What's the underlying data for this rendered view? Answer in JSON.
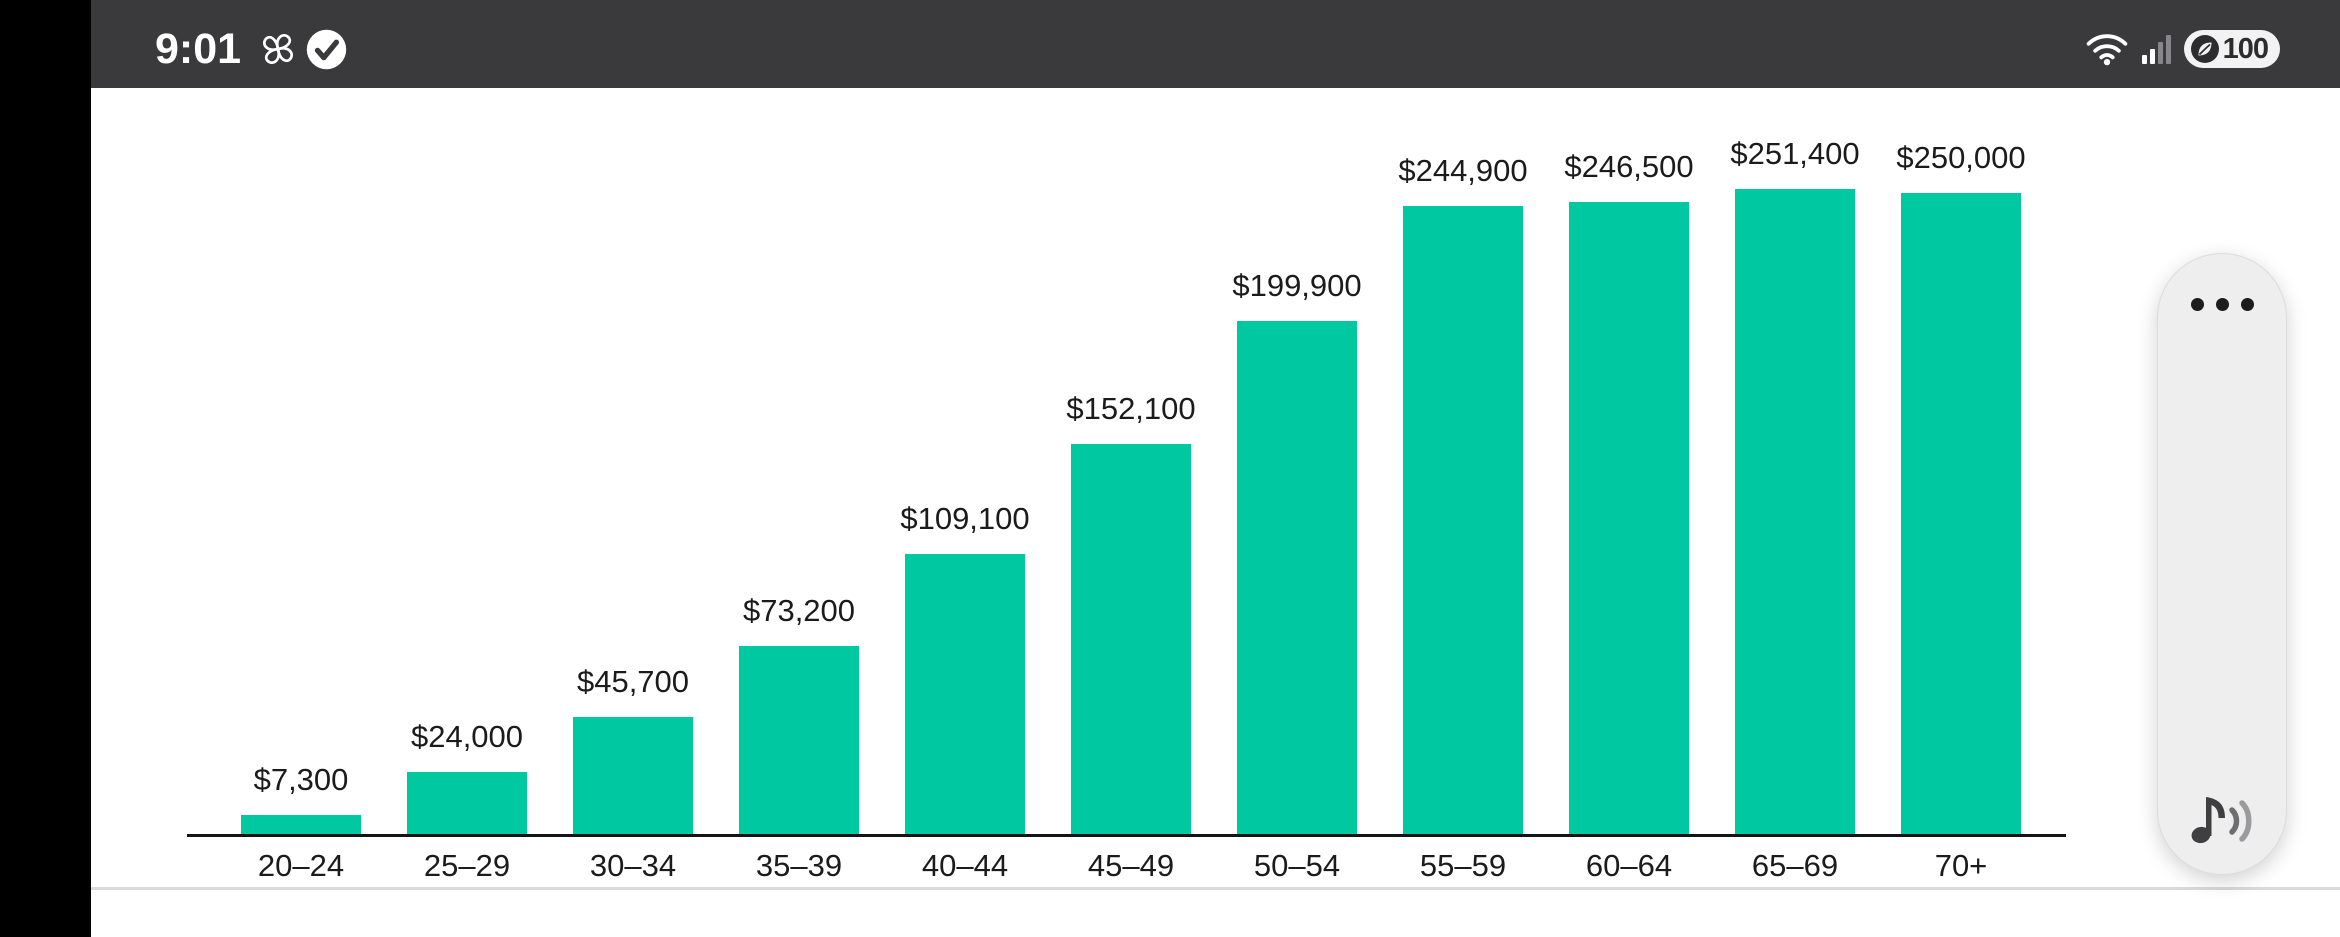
{
  "status_bar": {
    "time": "9:01",
    "battery_percent": "100",
    "icons": [
      "pinwheel-notification-icon",
      "checkmark-notification-icon",
      "wifi-icon",
      "cellular-signal-icon",
      "battery-saver-leaf-icon"
    ]
  },
  "chart_data": {
    "type": "bar",
    "categories": [
      "20–24",
      "25–29",
      "30–34",
      "35–39",
      "40–44",
      "45–49",
      "50–54",
      "55–59",
      "60–64",
      "65–69",
      "70+"
    ],
    "values": [
      7300,
      24000,
      45700,
      73200,
      109100,
      152100,
      199900,
      244900,
      246500,
      251400,
      250000
    ],
    "value_labels": [
      "$7,300",
      "$24,000",
      "$45,700",
      "$73,200",
      "$109,100",
      "$152,100",
      "$199,900",
      "$244,900",
      "$246,500",
      "$251,400",
      "$250,000"
    ],
    "title": "",
    "xlabel": "",
    "ylabel": "",
    "ylim": [
      0,
      260000
    ],
    "grid": false,
    "legend": null,
    "bar_color": "#00c9a2",
    "axis_color": "#141414",
    "label_color": "#1b1b1b"
  },
  "floating_control": {
    "more_options_icon": "more-options-icon",
    "media_icon": "media-sound-icon"
  },
  "colors": {
    "status_bar_bg": "#3a3a3c",
    "cutout": "#000000",
    "content_bg": "#ffffff",
    "divider": "#d9d9d9",
    "pill_bg": "#eeeeee"
  }
}
